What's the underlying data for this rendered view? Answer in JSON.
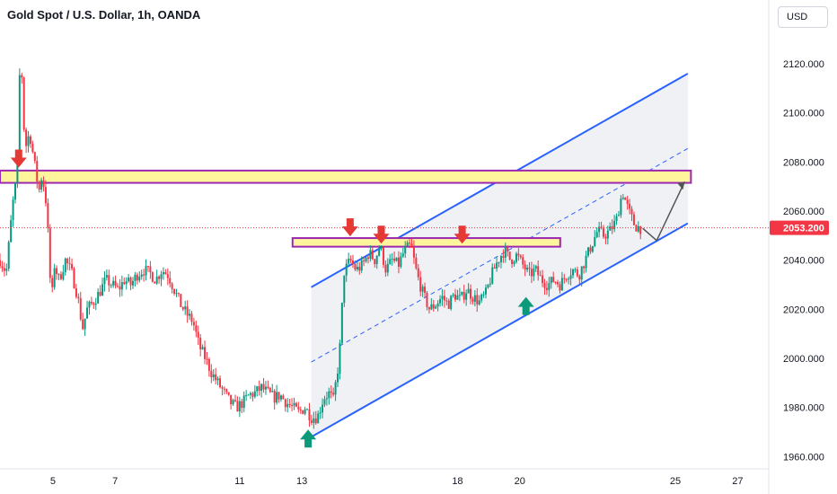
{
  "header": {
    "title": "Gold Spot / U.S. Dollar, 1h, OANDA"
  },
  "toolbar": {
    "currency_label": "USD"
  },
  "chart_data": {
    "type": "candlestick",
    "title": "Gold Spot / U.S. Dollar, 1h, OANDA",
    "ylim": [
      1955,
      2135
    ],
    "xlim": [
      3.3,
      28.0
    ],
    "y_ticks": [
      "1960.000",
      "1980.000",
      "2000.000",
      "2020.000",
      "2040.000",
      "2060.000",
      "2080.000",
      "2100.000",
      "2120.000"
    ],
    "x_ticks": [
      "5",
      "7",
      "11",
      "13",
      "18",
      "20",
      "25",
      "27"
    ],
    "x_tick_positions": [
      5,
      7,
      11,
      13,
      18,
      20,
      25,
      27
    ],
    "current_price": "2053.200",
    "colors": {
      "up": "#089981",
      "down": "#f23645",
      "channel": "#2962ff",
      "zone_fill": "#fff59d",
      "zone_border": "#9c27b0",
      "marker_down": "#e53935",
      "marker_up": "#0d9a7a"
    },
    "price_path": [
      [
        3.3,
        2040
      ],
      [
        3.5,
        2035
      ],
      [
        3.7,
        2062
      ],
      [
        3.85,
        2075
      ],
      [
        3.95,
        2125
      ],
      [
        4.0,
        2115
      ],
      [
        4.1,
        2085
      ],
      [
        4.25,
        2092
      ],
      [
        4.4,
        2080
      ],
      [
        4.55,
        2068
      ],
      [
        4.65,
        2075
      ],
      [
        4.8,
        2062
      ],
      [
        4.95,
        2022
      ],
      [
        5.05,
        2038
      ],
      [
        5.2,
        2032
      ],
      [
        5.4,
        2040
      ],
      [
        5.6,
        2035
      ],
      [
        5.8,
        2025
      ],
      [
        5.95,
        2012
      ],
      [
        6.1,
        2020
      ],
      [
        6.3,
        2023
      ],
      [
        6.5,
        2027
      ],
      [
        6.7,
        2032
      ],
      [
        6.9,
        2030
      ],
      [
        7.1,
        2028
      ],
      [
        7.3,
        2032
      ],
      [
        7.5,
        2030
      ],
      [
        7.7,
        2034
      ],
      [
        7.9,
        2036
      ],
      [
        8.1,
        2035
      ],
      [
        8.3,
        2032
      ],
      [
        8.5,
        2036
      ],
      [
        8.7,
        2034
      ],
      [
        8.9,
        2028
      ],
      [
        9.1,
        2022
      ],
      [
        9.3,
        2018
      ],
      [
        9.5,
        2015
      ],
      [
        9.7,
        2005
      ],
      [
        9.9,
        2000
      ],
      [
        10.1,
        1994
      ],
      [
        10.3,
        1990
      ],
      [
        10.5,
        1986
      ],
      [
        10.7,
        1982
      ],
      [
        10.9,
        1980
      ],
      [
        11.1,
        1982
      ],
      [
        11.3,
        1985
      ],
      [
        11.5,
        1986
      ],
      [
        11.7,
        1988
      ],
      [
        11.9,
        1986
      ],
      [
        12.1,
        1984
      ],
      [
        12.3,
        1985
      ],
      [
        12.5,
        1982
      ],
      [
        12.7,
        1980
      ],
      [
        12.9,
        1978
      ],
      [
        13.1,
        1980
      ],
      [
        13.3,
        1976
      ],
      [
        13.5,
        1976
      ],
      [
        13.7,
        1984
      ],
      [
        13.9,
        1986
      ],
      [
        14.0,
        1982
      ],
      [
        14.2,
        2000
      ],
      [
        14.35,
        2035
      ],
      [
        14.55,
        2040
      ],
      [
        14.75,
        2036
      ],
      [
        14.95,
        2038
      ],
      [
        15.15,
        2043
      ],
      [
        15.35,
        2040
      ],
      [
        15.5,
        2046
      ],
      [
        15.7,
        2036
      ],
      [
        15.9,
        2040
      ],
      [
        16.1,
        2038
      ],
      [
        16.3,
        2044
      ],
      [
        16.5,
        2046
      ],
      [
        16.7,
        2034
      ],
      [
        16.9,
        2026
      ],
      [
        17.1,
        2020
      ],
      [
        17.3,
        2022
      ],
      [
        17.5,
        2025
      ],
      [
        17.7,
        2022
      ],
      [
        17.9,
        2026
      ],
      [
        18.1,
        2024
      ],
      [
        18.3,
        2028
      ],
      [
        18.5,
        2025
      ],
      [
        18.7,
        2023
      ],
      [
        18.9,
        2026
      ],
      [
        19.1,
        2034
      ],
      [
        19.3,
        2040
      ],
      [
        19.5,
        2044
      ],
      [
        19.7,
        2040
      ],
      [
        19.9,
        2042
      ],
      [
        20.1,
        2038
      ],
      [
        20.3,
        2034
      ],
      [
        20.5,
        2036
      ],
      [
        20.7,
        2032
      ],
      [
        20.9,
        2030
      ],
      [
        21.1,
        2032
      ],
      [
        21.3,
        2030
      ],
      [
        21.5,
        2034
      ],
      [
        21.7,
        2036
      ],
      [
        21.9,
        2034
      ],
      [
        22.1,
        2040
      ],
      [
        22.3,
        2046
      ],
      [
        22.5,
        2052
      ],
      [
        22.7,
        2050
      ],
      [
        22.9,
        2052
      ],
      [
        23.1,
        2056
      ],
      [
        23.3,
        2068
      ],
      [
        23.5,
        2060
      ],
      [
        23.7,
        2054
      ],
      [
        23.9,
        2053
      ]
    ],
    "resistance_zones": [
      {
        "x1": 3.3,
        "x2": 25.5,
        "y1": 2071.5,
        "y2": 2076.5
      },
      {
        "x1": 12.7,
        "x2": 21.3,
        "y1": 2045.5,
        "y2": 2049.0
      }
    ],
    "down_markers": [
      [
        3.9,
        2077
      ],
      [
        14.55,
        2049
      ],
      [
        15.55,
        2046
      ],
      [
        18.15,
        2046
      ]
    ],
    "up_markers": [
      [
        13.2,
        1971
      ],
      [
        20.2,
        2025
      ]
    ]
  }
}
